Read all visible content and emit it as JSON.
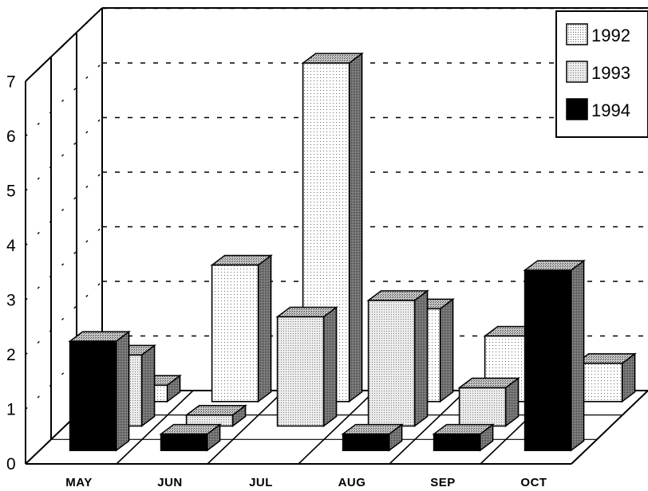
{
  "chart_data": {
    "type": "bar",
    "title": "",
    "xlabel": "",
    "ylabel": "",
    "ylim": [
      0,
      7
    ],
    "yticks": [
      "0",
      "1",
      "2",
      "3",
      "4",
      "5",
      "6",
      "7"
    ],
    "categories": [
      "MAY",
      "JUN",
      "JUL",
      "AUG",
      "SEP",
      "OCT"
    ],
    "series": [
      {
        "name": "1992",
        "values": [
          0.3,
          2.5,
          6.2,
          1.7,
          1.2,
          0.7
        ]
      },
      {
        "name": "1993",
        "values": [
          1.3,
          0.2,
          2.0,
          2.3,
          0.7,
          0
        ]
      },
      {
        "name": "1994",
        "values": [
          2.0,
          0.3,
          0,
          0.3,
          0.3,
          3.3
        ]
      }
    ],
    "legend_position": "top-right",
    "grid": true,
    "style": "3d",
    "colors": {
      "1992": "#f4f4f4",
      "1993": "#dcdcdc",
      "1994": "#000000"
    }
  }
}
